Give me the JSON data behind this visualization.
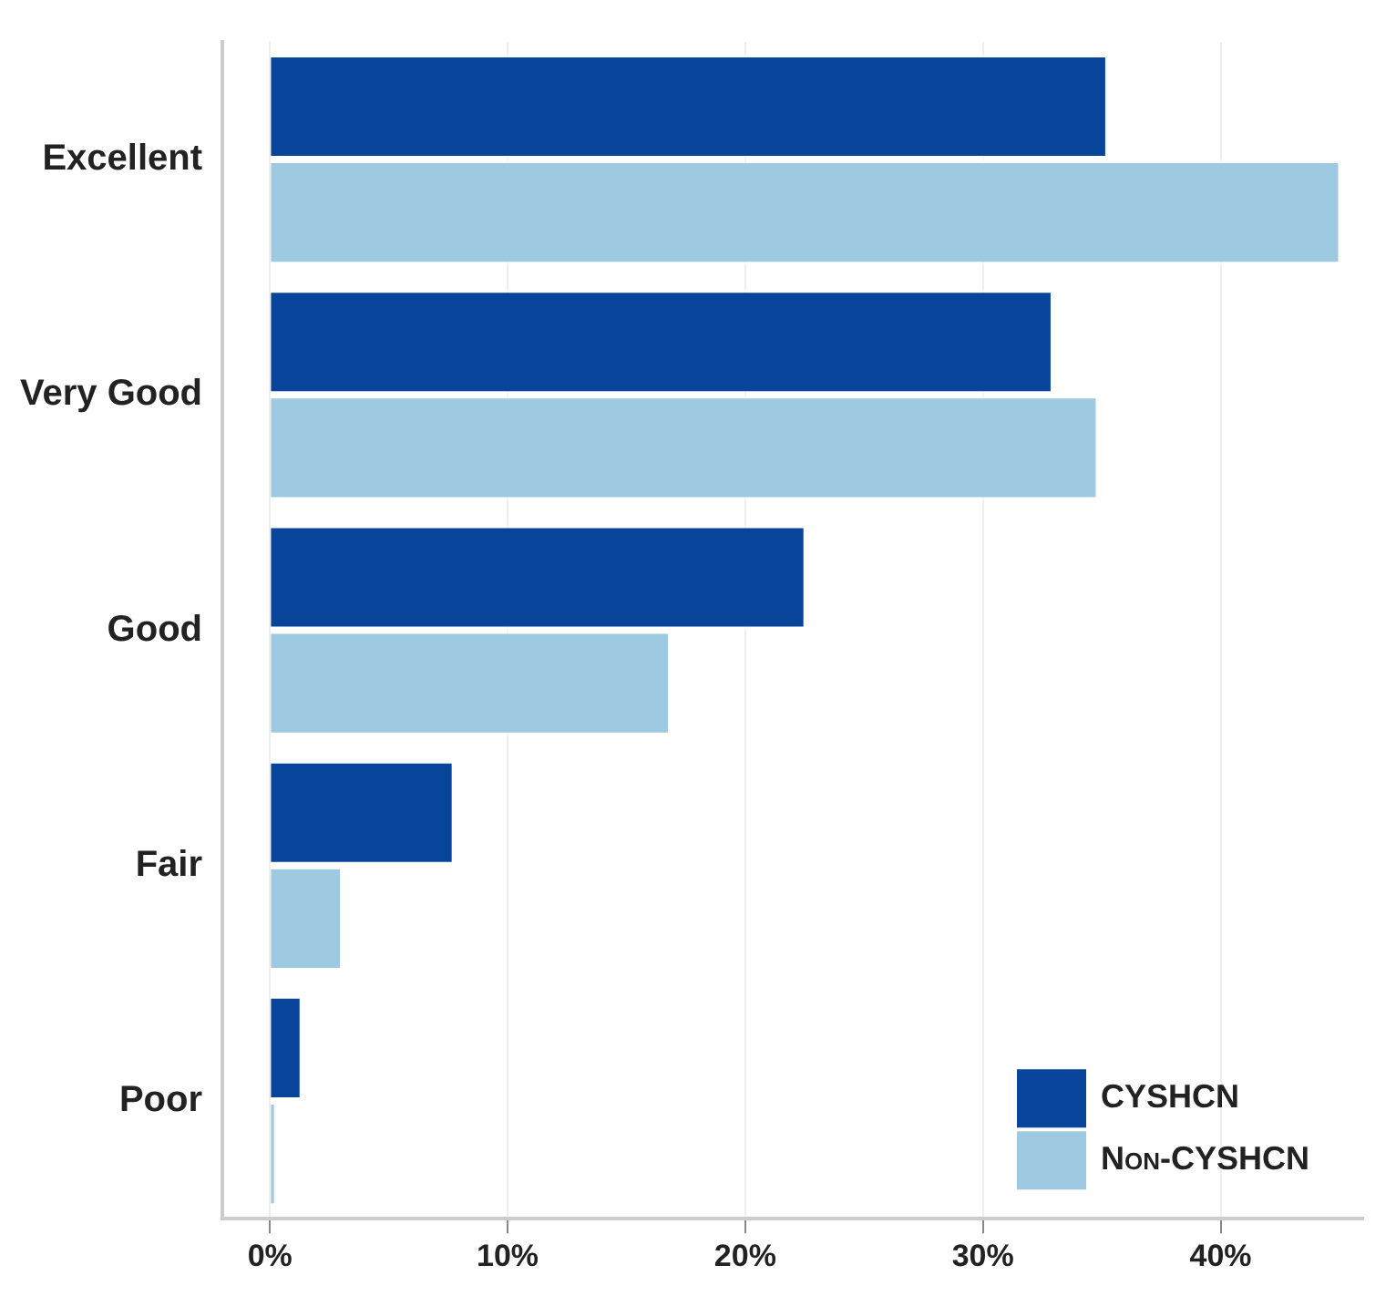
{
  "chart_data": {
    "type": "bar",
    "orientation": "horizontal",
    "categories": [
      "Excellent",
      "Very Good",
      "Good",
      "Fair",
      "Poor"
    ],
    "series": [
      {
        "name": "CYSHCN",
        "color": "#08449a",
        "values": [
          35.3,
          33.0,
          22.6,
          7.8,
          1.4
        ]
      },
      {
        "name": "Non-CYSHCN",
        "color": "#9ecae1",
        "values": [
          45.1,
          34.9,
          16.9,
          3.1,
          0.3
        ]
      }
    ],
    "xlim": [
      -2,
      46
    ],
    "xticks": [
      {
        "value": 0,
        "label": "0%"
      },
      {
        "value": 10,
        "label": "10%"
      },
      {
        "value": 20,
        "label": "20%"
      },
      {
        "value": 30,
        "label": "30%"
      },
      {
        "value": 40,
        "label": "40%"
      }
    ],
    "grid": "x",
    "legend": "bottom right"
  }
}
